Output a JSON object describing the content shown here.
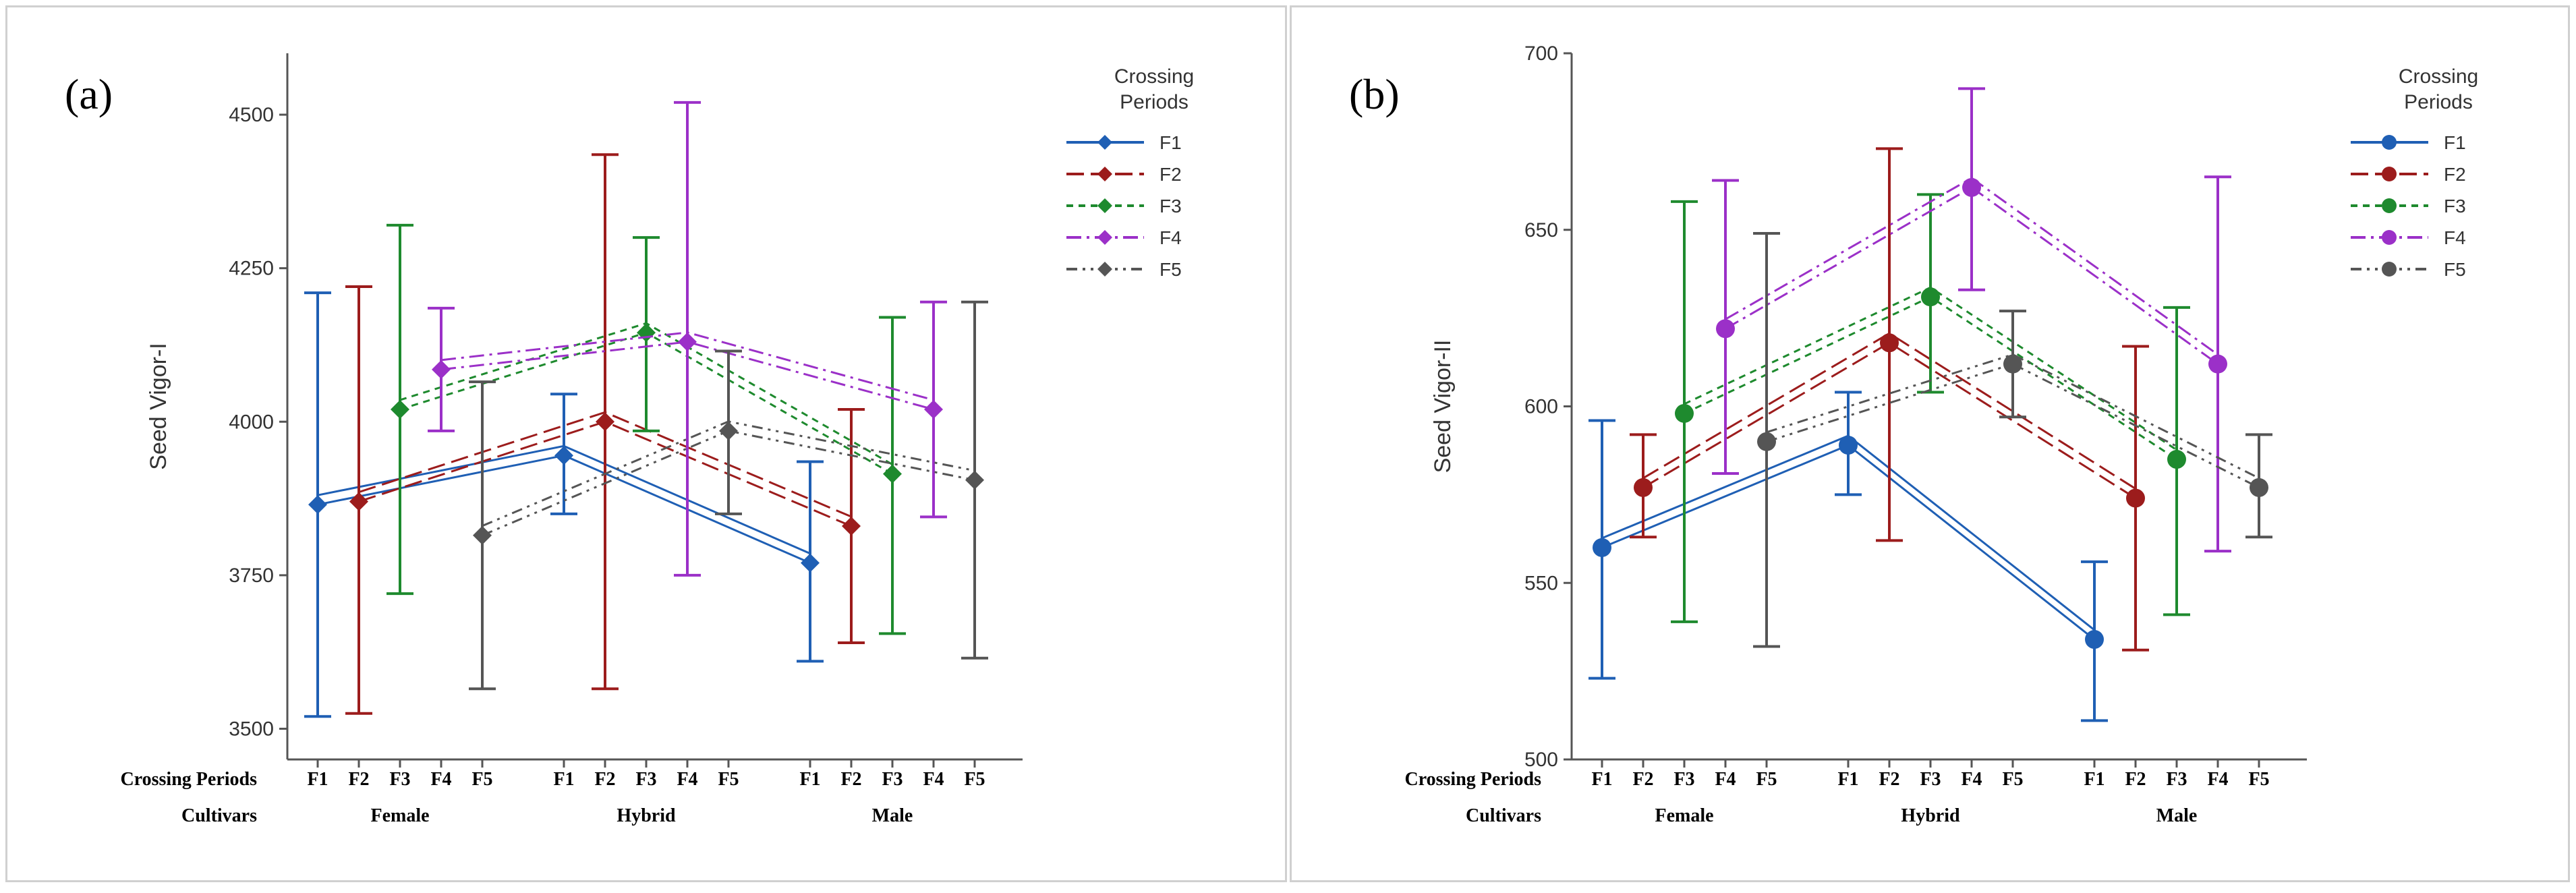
{
  "chart_data": [
    {
      "type": "line",
      "panel_label": "(a)",
      "ylabel": "Seed Vigor-I",
      "ylim": [
        3450,
        4600
      ],
      "yticks": [
        3500,
        3750,
        4000,
        4250,
        4500
      ],
      "x_row_labels": {
        "periods": "Crossing Periods",
        "cultivars": "Cultivars"
      },
      "cultivars": [
        "Female",
        "Hybrid",
        "Male"
      ],
      "periods": [
        "F1",
        "F2",
        "F3",
        "F4",
        "F5"
      ],
      "legend": {
        "title_line1": "Crossing",
        "title_line2": "Periods",
        "position": "top-right"
      },
      "marker": "diamond",
      "series": [
        {
          "name": "F1",
          "color": "#1f5fb4",
          "dash": "",
          "values": [
            3865,
            3945,
            3770
          ],
          "err_low": [
            3520,
            3850,
            3610
          ],
          "err_high": [
            4210,
            4045,
            3935
          ]
        },
        {
          "name": "F2",
          "color": "#9c1c1c",
          "dash": "26,10",
          "values": [
            3870,
            4000,
            3830
          ],
          "err_low": [
            3525,
            3565,
            3640
          ],
          "err_high": [
            4220,
            4435,
            4020
          ]
        },
        {
          "name": "F3",
          "color": "#1e8a2e",
          "dash": "10,8",
          "values": [
            4020,
            4145,
            3915
          ],
          "err_low": [
            3720,
            3985,
            3655
          ],
          "err_high": [
            4320,
            4300,
            4170
          ]
        },
        {
          "name": "F4",
          "color": "#9b30c8",
          "dash": "22,8,4,8",
          "values": [
            4085,
            4130,
            4020
          ],
          "err_low": [
            3985,
            3750,
            3845
          ],
          "err_high": [
            4185,
            4520,
            4195
          ]
        },
        {
          "name": "F5",
          "color": "#555555",
          "dash": "16,8,4,8,4,8",
          "values": [
            3815,
            3985,
            3905
          ],
          "err_low": [
            3565,
            3850,
            3615
          ],
          "err_high": [
            4065,
            4115,
            4195
          ]
        }
      ]
    },
    {
      "type": "line",
      "panel_label": "(b)",
      "ylabel": "Seed Vigor-II",
      "ylim": [
        500,
        700
      ],
      "yticks": [
        500,
        550,
        600,
        650,
        700
      ],
      "x_row_labels": {
        "periods": "Crossing Periods",
        "cultivars": "Cultivars"
      },
      "cultivars": [
        "Female",
        "Hybrid",
        "Male"
      ],
      "periods": [
        "F1",
        "F2",
        "F3",
        "F4",
        "F5"
      ],
      "legend": {
        "title_line1": "Crossing",
        "title_line2": "Periods",
        "position": "top-right"
      },
      "marker": "circle",
      "series": [
        {
          "name": "F1",
          "color": "#1f5fb4",
          "dash": "",
          "values": [
            560,
            589,
            534
          ],
          "err_low": [
            523,
            575,
            511
          ],
          "err_high": [
            596,
            604,
            556
          ]
        },
        {
          "name": "F2",
          "color": "#9c1c1c",
          "dash": "26,10",
          "values": [
            577,
            618,
            574
          ],
          "err_low": [
            563,
            562,
            531
          ],
          "err_high": [
            592,
            673,
            617
          ]
        },
        {
          "name": "F3",
          "color": "#1e8a2e",
          "dash": "10,8",
          "values": [
            598,
            631,
            585
          ],
          "err_low": [
            539,
            604,
            541
          ],
          "err_high": [
            658,
            660,
            628
          ]
        },
        {
          "name": "F4",
          "color": "#9b30c8",
          "dash": "22,8,4,8",
          "values": [
            622,
            662,
            612
          ],
          "err_low": [
            581,
            633,
            559
          ],
          "err_high": [
            664,
            690,
            665
          ]
        },
        {
          "name": "F5",
          "color": "#555555",
          "dash": "16,8,4,8,4,8",
          "values": [
            590,
            612,
            577
          ],
          "err_low": [
            532,
            597,
            563
          ],
          "err_high": [
            649,
            627,
            592
          ]
        }
      ]
    }
  ]
}
